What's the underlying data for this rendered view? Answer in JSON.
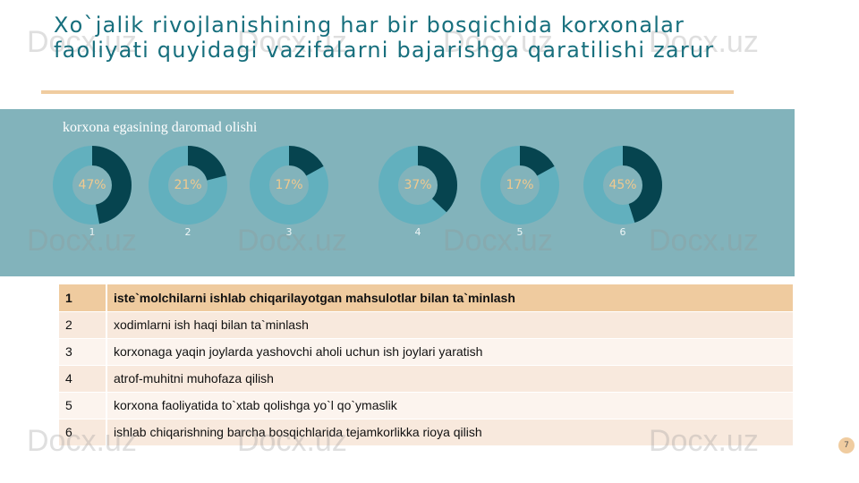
{
  "title": "Xo`jalik rivojlanishining har bir bosqichida korxonalar faoliyati quyidagi vazifalarni bajarishga qaratilishi zarur",
  "subtitle": "korxona egasining daromad olishi",
  "colors": {
    "title": "#176f7d",
    "band": "#82b3bb",
    "ring": "#62b0be",
    "fill": "#06444f",
    "percent": "#f0c98f",
    "header_row": "#efcb9f"
  },
  "donuts": [
    {
      "label": "1",
      "percent": 47,
      "text": "47%"
    },
    {
      "label": "2",
      "percent": 21,
      "text": "21%"
    },
    {
      "label": "3",
      "percent": 17,
      "text": "17%"
    },
    {
      "label": "4",
      "percent": 37,
      "text": "37%"
    },
    {
      "label": "5",
      "percent": 17,
      "text": "17%"
    },
    {
      "label": "6",
      "percent": 45,
      "text": "45%"
    }
  ],
  "table": [
    {
      "n": "1",
      "text": "iste`molchilarni ishlab chiqarilayotgan mahsulotlar bilan ta`minlash"
    },
    {
      "n": "2",
      "text": "xodimlarni ish haqi bilan ta`minlash"
    },
    {
      "n": "3",
      "text": "korxonaga yaqin joylarda yashovchi aholi uchun ish joylari yaratish"
    },
    {
      "n": "4",
      "text": "atrof-muhitni muhofaza qilish"
    },
    {
      "n": "5",
      "text": "korxona faoliyatida to`xtab qolishga yo`l qo`ymaslik"
    },
    {
      "n": "6",
      "text": "ishlab chiqarishning barcha bosqichlarida tejamkorlikka rioya qilish"
    }
  ],
  "page_number": "7",
  "watermark": "Docx.uz"
}
